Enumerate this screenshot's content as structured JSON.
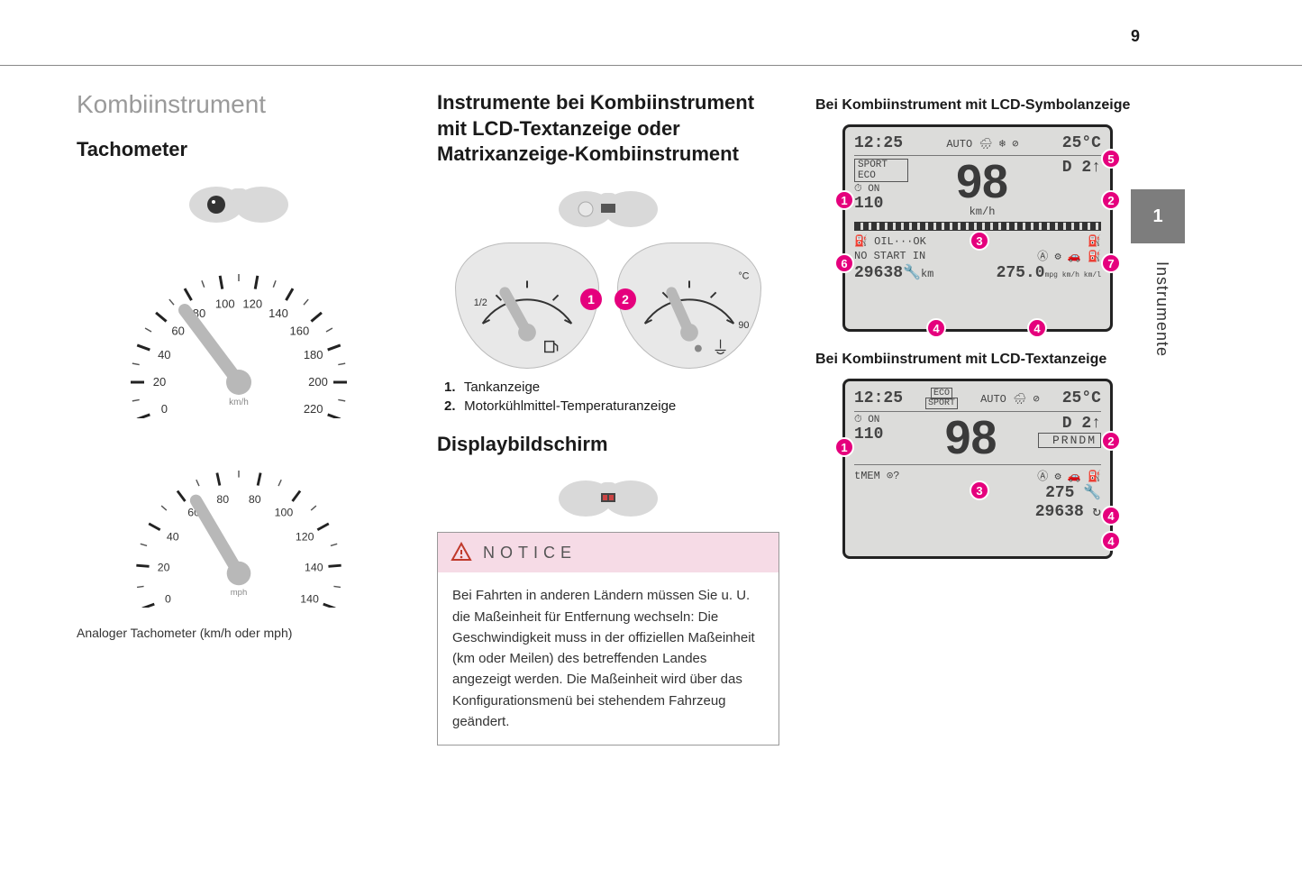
{
  "page_number": "9",
  "side_tab": "1",
  "side_label": "Instrumente",
  "accent_color": "#e5007d",
  "col1": {
    "section_title": "Kombiinstrument",
    "subtitle": "Tachometer",
    "caption": "Analoger Tachometer (km/h oder mph)",
    "speedo1_ticks": [
      "0",
      "20",
      "40",
      "60",
      "80",
      "100",
      "120",
      "140",
      "160",
      "180",
      "200",
      "220"
    ],
    "speedo2_ticks": [
      "0",
      "20",
      "40",
      "60",
      "80",
      "80",
      "100",
      "120",
      "140",
      "140"
    ]
  },
  "col2": {
    "title": "Instrumente bei Kombiinstrument mit LCD-Textanzeige oder Matrixanzeige-Kombiinstrument",
    "gauge1_label": "1/2",
    "gauge2_label": "°C",
    "gauge2_max": "90",
    "legend": [
      {
        "n": "1.",
        "t": "Tankanzeige"
      },
      {
        "n": "2.",
        "t": "Motorkühlmittel-Temperaturanzeige"
      }
    ],
    "display_title": "Displaybildschirm",
    "notice_label": "NOTICE",
    "notice_body": "Bei Fahrten in anderen Ländern müssen Sie u. U. die Maßeinheit für Entfernung wechseln: Die Geschwindigkeit muss in der offiziellen Maßeinheit (km oder Meilen) des betreffenden Landes angezeigt werden. Die Maßeinheit wird über das Konfigurationsmenü bei stehendem Fahrzeug geändert."
  },
  "col3": {
    "caption_a": "Bei Kombiinstrument mit LCD-Symbolanzeige",
    "caption_b": "Bei Kombiinstrument mit LCD-Textanzeige",
    "lcd_a": {
      "time": "12:25",
      "temp": "25°C",
      "mode": "SPORT ECO",
      "cruise_on": "ON",
      "cruise_set": "110",
      "speed": "98",
      "speed_unit": "km/h",
      "gear": "D 2↑",
      "oil": "OIL···OK",
      "nostart": "NO START IN",
      "odo": "29638",
      "odo_unit": "km",
      "trip": "275.0",
      "trip_unit": "mpg km/h km/l",
      "callouts": [
        "1",
        "2",
        "3",
        "4",
        "4",
        "5",
        "6",
        "7"
      ]
    },
    "lcd_b": {
      "time": "12:25",
      "eco": "ECO",
      "sport": "SPORT",
      "temp": "25°C",
      "cruise_on": "ON",
      "cruise_set": "110",
      "speed": "98",
      "gear": "D 2↑",
      "prndm": "PRNDM",
      "mem": "tMEM",
      "trip": "275",
      "odo": "29638",
      "callouts": [
        "1",
        "2",
        "3",
        "4",
        "4"
      ]
    }
  }
}
